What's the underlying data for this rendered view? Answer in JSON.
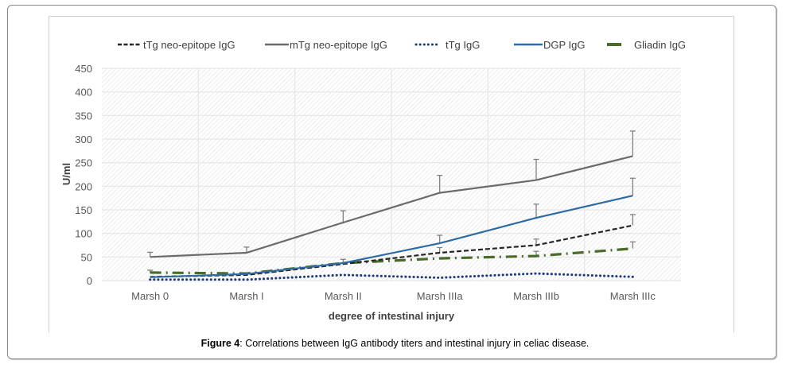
{
  "figure": {
    "caption_label": "Figure 4",
    "caption_text": ": Correlations between IgG antibody titers and intestinal injury in celiac disease."
  },
  "chart_data": {
    "type": "line",
    "title": "",
    "xlabel": "degree of intestinal injury",
    "ylabel": "U/ml",
    "ylim": [
      0,
      450
    ],
    "yticks": [
      0,
      50,
      100,
      150,
      200,
      250,
      300,
      350,
      400,
      450
    ],
    "grid": true,
    "legend_position": "top",
    "categories": [
      "Marsh 0",
      "Marsh I",
      "Marsh II",
      "Marsh IIIa",
      "Marsh IIIb",
      "Marsh IIIc"
    ],
    "series": [
      {
        "name": "tTg neo-epitope IgG",
        "style": "dashed",
        "color": "#262626",
        "values": [
          8,
          12,
          35,
          59,
          75,
          117
        ],
        "error_upper": [
          null,
          null,
          45,
          70,
          88,
          140
        ]
      },
      {
        "name": "mTg neo-epitope IgG",
        "style": "solid",
        "color": "#6b6b6b",
        "values": [
          50,
          59,
          123,
          186,
          213,
          264
        ],
        "error_upper": [
          60,
          71,
          148,
          223,
          257,
          317
        ]
      },
      {
        "name": "tTg IgG",
        "style": "dotted",
        "color": "#1f3a7a",
        "values": [
          2,
          2,
          12,
          6,
          15,
          8
        ],
        "error_upper": [
          null,
          null,
          null,
          null,
          null,
          null
        ]
      },
      {
        "name": "DGP IgG",
        "style": "solid",
        "color": "#2e6aa3",
        "values": [
          7,
          14,
          37,
          79,
          133,
          180
        ],
        "error_upper": [
          null,
          null,
          null,
          96,
          162,
          217
        ]
      },
      {
        "name": "Gliadin IgG",
        "style": "dash-dot",
        "color": "#4a6b2a",
        "values": [
          17,
          15,
          37,
          47,
          52,
          68
        ],
        "error_upper": [
          22,
          null,
          null,
          null,
          62,
          82
        ]
      }
    ]
  }
}
